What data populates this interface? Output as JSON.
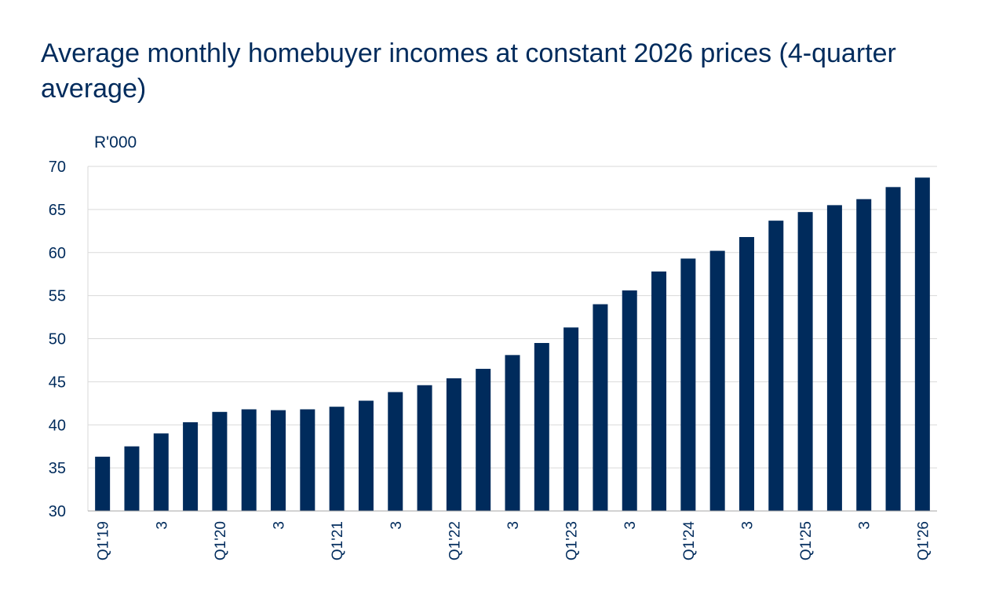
{
  "chart_data": {
    "type": "bar",
    "title": "Average monthly homebuyer incomes at constant 2026 prices (4-quarter average)",
    "unit_label": "R'000",
    "xlabel": "",
    "ylabel": "",
    "ylim": [
      30,
      70
    ],
    "yticks": [
      30,
      35,
      40,
      45,
      50,
      55,
      60,
      65,
      70
    ],
    "grid": true,
    "legend": "none",
    "colors": {
      "bar": "#002b5c",
      "grid": "#d9d9d9",
      "axis": "#a6a6a6",
      "text": "#002b5c"
    },
    "categories": [
      "Q1'19",
      "",
      "3",
      "",
      "Q1'20",
      "",
      "3",
      "",
      "Q1'21",
      "",
      "3",
      "",
      "Q1'22",
      "",
      "3",
      "",
      "Q1'23",
      "",
      "3",
      "",
      "Q1'24",
      "",
      "3",
      "",
      "Q1'25",
      "",
      "3",
      "",
      "Q1'26"
    ],
    "values": [
      36.3,
      37.5,
      39.0,
      40.3,
      41.5,
      41.8,
      41.7,
      41.8,
      42.1,
      42.8,
      43.8,
      44.6,
      45.4,
      46.5,
      48.1,
      49.5,
      51.3,
      54.0,
      55.6,
      57.8,
      59.3,
      60.2,
      61.8,
      63.7,
      64.7,
      65.5,
      66.2,
      67.6,
      68.7
    ]
  }
}
